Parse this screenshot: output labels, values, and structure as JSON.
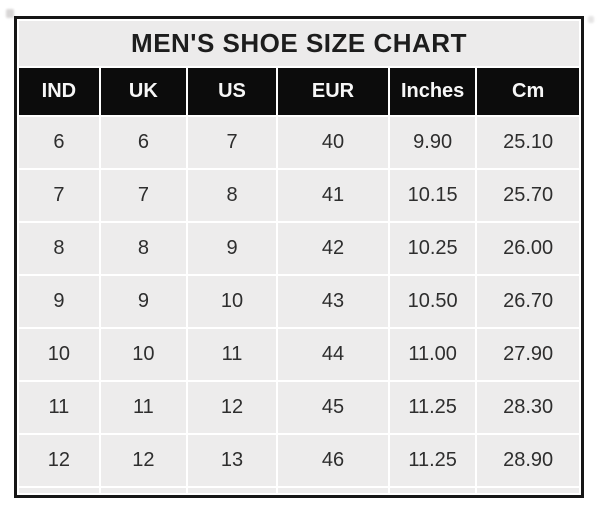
{
  "chart_data": {
    "type": "table",
    "title": "MEN'S SHOE SIZE CHART",
    "columns": [
      "IND",
      "UK",
      "US",
      "EUR",
      "Inches",
      "Cm"
    ],
    "rows": [
      [
        "6",
        "6",
        "7",
        "40",
        "9.90",
        "25.10"
      ],
      [
        "7",
        "7",
        "8",
        "41",
        "10.15",
        "25.70"
      ],
      [
        "8",
        "8",
        "9",
        "42",
        "10.25",
        "26.00"
      ],
      [
        "9",
        "9",
        "10",
        "43",
        "10.50",
        "26.70"
      ],
      [
        "10",
        "10",
        "11",
        "44",
        "11.00",
        "27.90"
      ],
      [
        "11",
        "11",
        "12",
        "45",
        "11.25",
        "28.30"
      ],
      [
        "12",
        "12",
        "13",
        "46",
        "11.25",
        "28.90"
      ]
    ],
    "layout_hints": {
      "grid": "white gutters between gray cells",
      "outer_border": "thick black",
      "bottom_partial_row_visible": true
    }
  },
  "colors": {
    "border_color": "#161616",
    "title_bg": "#ECEBEB",
    "title_text": "#1D1D1D",
    "header_bg": "#0C0C0C",
    "header_text": "#F7F7F7",
    "cell_bg": "#EDECEC",
    "cell_text": "#2E2E2E"
  }
}
